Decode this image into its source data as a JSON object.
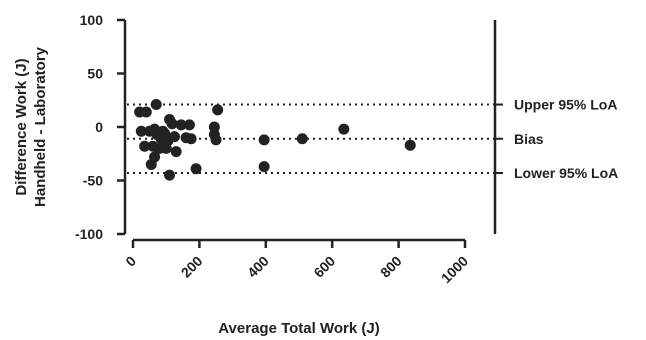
{
  "chart_data": {
    "type": "scatter",
    "title": "",
    "xlabel": "Average Total Work (J)",
    "ylabel_lines": [
      "Difference Work (J)",
      "Handheld - Laboratory"
    ],
    "xlim": [
      0,
      1000
    ],
    "ylim": [
      -100,
      100
    ],
    "x_ticks": [
      0,
      200,
      400,
      600,
      800,
      1000
    ],
    "y_ticks": [
      100,
      50,
      0,
      -50,
      -100
    ],
    "x_tick_labels": [
      "0",
      "200",
      "400",
      "600",
      "800",
      "1000"
    ],
    "y_tick_labels": [
      "100",
      "50",
      "0",
      "-50",
      "-100"
    ],
    "grid": false,
    "reference_lines": [
      {
        "label": "Upper 95% LoA",
        "y": 21,
        "style": "dotted"
      },
      {
        "label": "Bias",
        "y": -11,
        "style": "dotted"
      },
      {
        "label": "Lower 95% LoA",
        "y": -43,
        "style": "dotted"
      }
    ],
    "points": [
      {
        "x": 20,
        "y": 14
      },
      {
        "x": 40,
        "y": 14
      },
      {
        "x": 25,
        "y": -4
      },
      {
        "x": 35,
        "y": -18
      },
      {
        "x": 50,
        "y": -4
      },
      {
        "x": 55,
        "y": -35
      },
      {
        "x": 60,
        "y": -18
      },
      {
        "x": 65,
        "y": -2
      },
      {
        "x": 65,
        "y": -28
      },
      {
        "x": 70,
        "y": 21
      },
      {
        "x": 72,
        "y": -7
      },
      {
        "x": 80,
        "y": -20
      },
      {
        "x": 85,
        "y": -11
      },
      {
        "x": 90,
        "y": -4
      },
      {
        "x": 95,
        "y": -6
      },
      {
        "x": 100,
        "y": -20
      },
      {
        "x": 105,
        "y": -13
      },
      {
        "x": 110,
        "y": 7
      },
      {
        "x": 110,
        "y": -45
      },
      {
        "x": 118,
        "y": 3
      },
      {
        "x": 125,
        "y": -9
      },
      {
        "x": 130,
        "y": -23
      },
      {
        "x": 145,
        "y": 2
      },
      {
        "x": 160,
        "y": -10
      },
      {
        "x": 170,
        "y": 2
      },
      {
        "x": 175,
        "y": -11
      },
      {
        "x": 190,
        "y": -39
      },
      {
        "x": 245,
        "y": 0
      },
      {
        "x": 245,
        "y": -7
      },
      {
        "x": 250,
        "y": -12
      },
      {
        "x": 255,
        "y": 16
      },
      {
        "x": 395,
        "y": -12
      },
      {
        "x": 395,
        "y": -37
      },
      {
        "x": 510,
        "y": -11
      },
      {
        "x": 635,
        "y": -2
      },
      {
        "x": 835,
        "y": -17
      }
    ]
  }
}
